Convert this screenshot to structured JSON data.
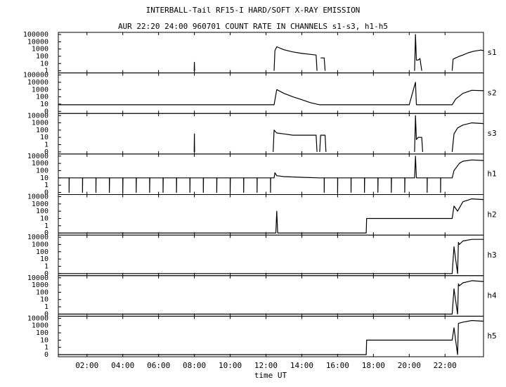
{
  "chart_data": {
    "type": "line",
    "title": "INTERBALL-Tail RF15-I HARD/SOFT X-RAY EMISSION",
    "subtitle": "AUR 22:20 24:00 960701  COUNT RATE IN CHANNELS s1-s3, h1-h5",
    "xlabel": "time UT",
    "yscale": "log",
    "xlim": [
      0.4,
      24.15
    ],
    "xticks": [
      {
        "value": 2,
        "label": "02:00"
      },
      {
        "value": 4,
        "label": "04:00"
      },
      {
        "value": 6,
        "label": "06:00"
      },
      {
        "value": 8,
        "label": "08:00"
      },
      {
        "value": 10,
        "label": "10:00"
      },
      {
        "value": 12,
        "label": "12:00"
      },
      {
        "value": 14,
        "label": "14:00"
      },
      {
        "value": 16,
        "label": "16:00"
      },
      {
        "value": 18,
        "label": "18:00"
      },
      {
        "value": 20,
        "label": "20:00"
      },
      {
        "value": 22,
        "label": "22:00"
      }
    ],
    "series": [
      {
        "name": "s1",
        "color": "#000000",
        "ylim": [
          1,
          100000
        ],
        "yticks": [
          1,
          10,
          100,
          1000,
          10000,
          100000
        ],
        "x": [
          7.99,
          8.0,
          8.01,
          8.02,
          12.45,
          12.5,
          12.6,
          13.0,
          13.5,
          14.0,
          14.5,
          14.8,
          14.85,
          15.0,
          15.05,
          15.25,
          15.3,
          15.35,
          20.3,
          20.35,
          20.4,
          20.5,
          20.6,
          20.7,
          20.75,
          22.4,
          22.45,
          22.6,
          22.8,
          23.0,
          23.3,
          23.6,
          24.0,
          24.15
        ],
        "values": [
          1,
          15,
          1,
          null,
          1,
          600,
          2000,
          800,
          400,
          250,
          180,
          150,
          1,
          null,
          60,
          60,
          1,
          null,
          1,
          100000,
          30,
          30,
          50,
          1,
          null,
          1,
          40,
          60,
          100,
          150,
          300,
          500,
          700,
          600
        ]
      },
      {
        "name": "s2",
        "color": "#000000",
        "ylim": [
          0,
          100000
        ],
        "yticks": [
          0,
          10,
          100,
          1000,
          10000,
          100000
        ],
        "x": [
          0.4,
          2,
          4,
          6,
          8,
          10,
          12,
          12.45,
          12.6,
          13,
          13.5,
          14,
          14.5,
          15,
          16,
          18,
          20,
          20.35,
          20.4,
          20.5,
          21,
          22,
          22.4,
          22.6,
          23,
          23.5,
          24.15
        ],
        "values": [
          8,
          8,
          8,
          8,
          8,
          8,
          8,
          8,
          1000,
          300,
          100,
          40,
          15,
          8,
          8,
          8,
          8,
          10000,
          8,
          8,
          8,
          8,
          8,
          50,
          300,
          800,
          700
        ]
      },
      {
        "name": "s3",
        "color": "#000000",
        "ylim": [
          0,
          10000
        ],
        "yticks": [
          0,
          1,
          10,
          100,
          1000,
          10000
        ],
        "x": [
          7.99,
          8.0,
          8.01,
          8.02,
          12.4,
          12.45,
          12.6,
          13,
          13.5,
          14,
          14.5,
          14.8,
          14.85,
          14.9,
          15,
          15.05,
          15.3,
          15.35,
          15.4,
          20.3,
          20.35,
          20.4,
          20.5,
          20.7,
          20.75,
          20.8,
          22.4,
          22.5,
          22.7,
          23,
          23.5,
          24.15
        ],
        "values": [
          0,
          30,
          0,
          null,
          0,
          100,
          40,
          30,
          20,
          20,
          20,
          20,
          0,
          null,
          0,
          20,
          20,
          0,
          null,
          0,
          10000,
          5,
          10,
          10,
          0,
          null,
          0,
          30,
          200,
          500,
          1000,
          800
        ]
      },
      {
        "name": "h1",
        "color": "#000000",
        "ylim": [
          0,
          10000
        ],
        "yticks": [
          0,
          1,
          10,
          100,
          1000,
          10000
        ],
        "x": [
          0.4,
          1,
          1,
          1.01,
          1.75,
          1.75,
          1.76,
          2.5,
          2.5,
          2.51,
          3.25,
          3.25,
          3.26,
          4,
          4,
          4.01,
          4.75,
          4.75,
          4.76,
          5.5,
          5.5,
          5.51,
          6.25,
          6.25,
          6.26,
          7,
          7,
          7.01,
          7.75,
          7.75,
          7.76,
          8.5,
          8.5,
          8.51,
          9.25,
          9.25,
          9.26,
          10,
          10,
          10.01,
          10.75,
          10.75,
          10.76,
          11.5,
          11.5,
          11.51,
          12.25,
          12.25,
          12.26,
          12.45,
          12.5,
          12.6,
          13,
          14,
          15,
          15.25,
          15.25,
          15.26,
          16,
          16,
          16.01,
          16.75,
          16.75,
          16.76,
          17.5,
          17.5,
          17.51,
          18.25,
          18.25,
          18.26,
          19,
          19,
          19.01,
          19.75,
          19.75,
          19.76,
          20.3,
          20.35,
          20.4,
          21,
          21,
          21.01,
          21.75,
          21.75,
          21.76,
          22.4,
          22.5,
          22.8,
          23,
          23.5,
          24.15
        ],
        "values": [
          10,
          10,
          0,
          10,
          10,
          0,
          10,
          10,
          0,
          10,
          10,
          0,
          10,
          10,
          0,
          10,
          10,
          0,
          10,
          10,
          0,
          10,
          10,
          0,
          10,
          10,
          0,
          10,
          10,
          0,
          10,
          10,
          0,
          10,
          10,
          0,
          10,
          10,
          0,
          10,
          10,
          0,
          10,
          10,
          0,
          10,
          10,
          0,
          10,
          10,
          50,
          20,
          15,
          12,
          10,
          10,
          0,
          10,
          10,
          0,
          10,
          10,
          0,
          10,
          10,
          0,
          10,
          10,
          0,
          10,
          10,
          0,
          10,
          10,
          0,
          10,
          10,
          10000,
          10,
          10,
          0,
          10,
          10,
          0,
          10,
          10,
          100,
          1000,
          2000,
          3000,
          2500
        ]
      },
      {
        "name": "h2",
        "color": "#000000",
        "ylim": [
          0,
          10000
        ],
        "yticks": [
          0,
          1,
          10,
          100,
          1000,
          10000
        ],
        "x": [
          0.4,
          12.55,
          12.6,
          12.65,
          17.6,
          17.62,
          22.4,
          22.5,
          22.7,
          23,
          23.5,
          24.15
        ],
        "values": [
          0,
          0,
          100,
          0,
          0,
          10,
          10,
          500,
          100,
          2000,
          5000,
          4000
        ]
      },
      {
        "name": "h3",
        "color": "#000000",
        "ylim": [
          0,
          10000
        ],
        "yticks": [
          0,
          1,
          10,
          100,
          1000,
          10000
        ],
        "x": [
          0.4,
          22.4,
          22.5,
          22.7,
          22.75,
          22.8,
          23,
          23.5,
          24.15
        ],
        "values": [
          0,
          0,
          500,
          0,
          2000,
          1000,
          3000,
          5000,
          5000
        ]
      },
      {
        "name": "h4",
        "color": "#000000",
        "ylim": [
          0,
          10000
        ],
        "yticks": [
          0,
          1,
          10,
          100,
          1000,
          10000
        ],
        "x": [
          0.4,
          22.4,
          22.5,
          22.7,
          22.75,
          22.8,
          23,
          23.5,
          24.15
        ],
        "values": [
          0,
          0,
          300,
          0,
          1500,
          800,
          2000,
          4000,
          3000
        ]
      },
      {
        "name": "h5",
        "color": "#000000",
        "ylim": [
          0,
          10000
        ],
        "yticks": [
          0,
          1,
          10,
          100,
          1000,
          10000
        ],
        "x": [
          0.4,
          17.6,
          17.62,
          22.4,
          22.5,
          22.7,
          22.75,
          23,
          23.5,
          24.15
        ],
        "values": [
          0,
          0,
          10,
          10,
          500,
          0,
          2000,
          3000,
          5000,
          4000
        ]
      }
    ]
  }
}
